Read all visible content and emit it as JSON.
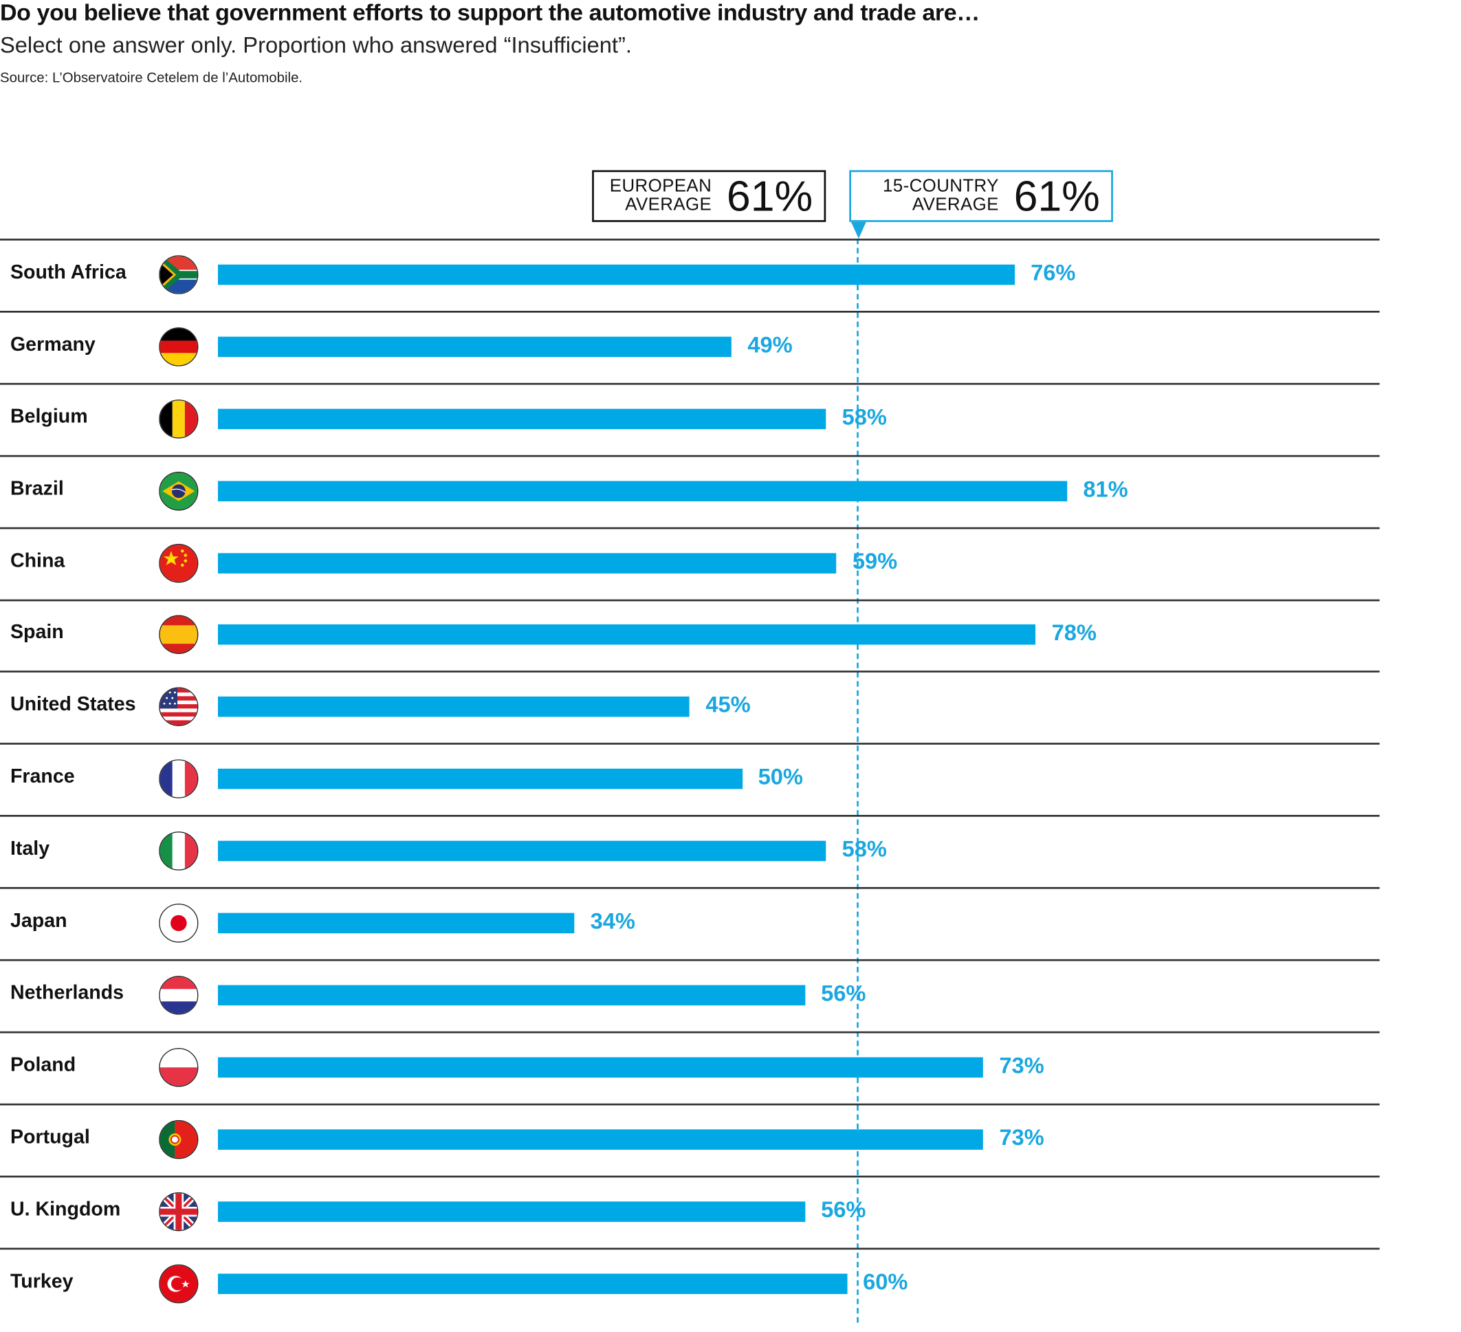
{
  "header": {
    "title": "Do you believe that government efforts to support the automotive industry and trade are…",
    "subtitle": "Select one answer only. Proportion who answered “Insufficient”.",
    "source": "Source: L’Observatoire Cetelem de l’Automobile."
  },
  "averages": {
    "european": {
      "label_line1": "EUROPEAN",
      "label_line2": "AVERAGE",
      "value": "61%"
    },
    "all": {
      "label_line1": "15-COUNTRY",
      "label_line2": "AVERAGE",
      "value": "61%"
    }
  },
  "colors": {
    "bar": "#00a8e6",
    "label": "#1aa7e0",
    "accent": "#1aa7e0"
  },
  "chart_data": {
    "type": "bar",
    "orientation": "horizontal",
    "title": "Do you believe that government efforts to support the automotive industry and trade are…",
    "subtitle": "Select one answer only. Proportion who answered “Insufficient”.",
    "xlabel": "",
    "ylabel": "",
    "unit": "%",
    "xlim": [
      0,
      100
    ],
    "grid": false,
    "reference_lines": [
      {
        "name": "European average",
        "value": 61
      },
      {
        "name": "15-country average",
        "value": 61
      }
    ],
    "categories": [
      "South Africa",
      "Germany",
      "Belgium",
      "Brazil",
      "China",
      "Spain",
      "United States",
      "France",
      "Italy",
      "Japan",
      "Netherlands",
      "Poland",
      "Portugal",
      "U. Kingdom",
      "Turkey"
    ],
    "values": [
      76,
      49,
      58,
      81,
      59,
      78,
      45,
      50,
      58,
      34,
      56,
      73,
      73,
      56,
      60
    ],
    "labels": [
      "76%",
      "49%",
      "58%",
      "81%",
      "59%",
      "78%",
      "45%",
      "50%",
      "58%",
      "34%",
      "56%",
      "73%",
      "73%",
      "56%",
      "60%"
    ],
    "flags": [
      "south-africa",
      "germany",
      "belgium",
      "brazil",
      "china",
      "spain",
      "united-states",
      "france",
      "italy",
      "japan",
      "netherlands",
      "poland",
      "portugal",
      "united-kingdom",
      "turkey"
    ]
  }
}
